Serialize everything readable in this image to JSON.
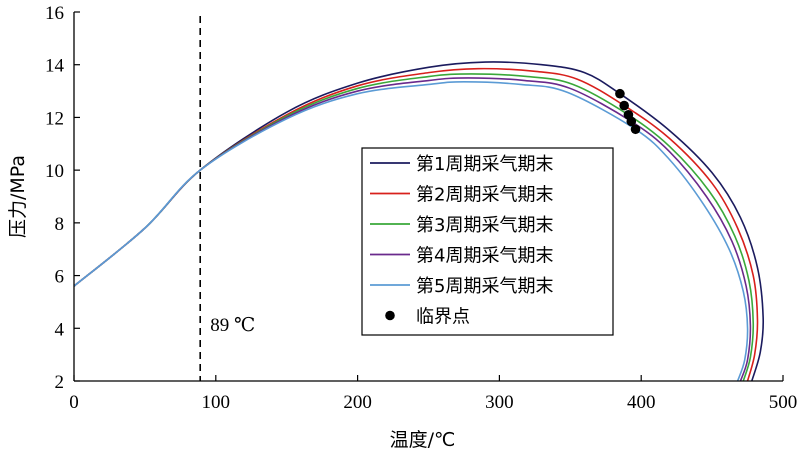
{
  "chart_data": {
    "type": "line",
    "xlabel": "温度/℃",
    "ylabel": "压力/MPa",
    "xlim": [
      0,
      500
    ],
    "ylim": [
      2,
      16
    ],
    "xticks": [
      0,
      100,
      200,
      300,
      400,
      500
    ],
    "yticks": [
      2,
      4,
      6,
      8,
      10,
      12,
      14,
      16
    ],
    "grid": false,
    "legend_position": "center-right",
    "vline": {
      "x": 89,
      "label": "89 ℃",
      "style": "dashed"
    },
    "series": [
      {
        "name": "第1周期采气期末",
        "color": "#1b1b5e",
        "points": [
          [
            0,
            5.6
          ],
          [
            50,
            7.8
          ],
          [
            89,
            10.0
          ],
          [
            150,
            12.2
          ],
          [
            200,
            13.3
          ],
          [
            250,
            13.9
          ],
          [
            290,
            14.1
          ],
          [
            330,
            14.0
          ],
          [
            360,
            13.7
          ],
          [
            385,
            12.9
          ],
          [
            420,
            11.5
          ],
          [
            450,
            9.9
          ],
          [
            470,
            8.2
          ],
          [
            482,
            6.3
          ],
          [
            486,
            4.4
          ],
          [
            484,
            3.1
          ],
          [
            478,
            2.0
          ]
        ]
      },
      {
        "name": "第2周期采气期末",
        "color": "#d8201c",
        "points": [
          [
            0,
            5.6
          ],
          [
            50,
            7.8
          ],
          [
            89,
            10.0
          ],
          [
            150,
            12.1
          ],
          [
            200,
            13.2
          ],
          [
            250,
            13.7
          ],
          [
            285,
            13.85
          ],
          [
            325,
            13.75
          ],
          [
            355,
            13.45
          ],
          [
            388,
            12.45
          ],
          [
            420,
            11.2
          ],
          [
            450,
            9.5
          ],
          [
            468,
            7.8
          ],
          [
            479,
            6.0
          ],
          [
            482,
            4.3
          ],
          [
            480,
            3.0
          ],
          [
            475,
            2.0
          ]
        ]
      },
      {
        "name": "第3周期采气期末",
        "color": "#3aa83a",
        "points": [
          [
            0,
            5.6
          ],
          [
            50,
            7.8
          ],
          [
            89,
            10.0
          ],
          [
            150,
            12.05
          ],
          [
            200,
            13.1
          ],
          [
            250,
            13.55
          ],
          [
            280,
            13.65
          ],
          [
            320,
            13.55
          ],
          [
            352,
            13.25
          ],
          [
            391,
            12.1
          ],
          [
            420,
            10.9
          ],
          [
            448,
            9.2
          ],
          [
            466,
            7.5
          ],
          [
            476,
            5.8
          ],
          [
            479,
            4.2
          ],
          [
            477,
            2.9
          ],
          [
            472,
            2.0
          ]
        ]
      },
      {
        "name": "第4周期采气期末",
        "color": "#6a2a8c",
        "points": [
          [
            0,
            5.6
          ],
          [
            50,
            7.8
          ],
          [
            89,
            10.0
          ],
          [
            150,
            12.0
          ],
          [
            200,
            13.0
          ],
          [
            250,
            13.4
          ],
          [
            278,
            13.5
          ],
          [
            318,
            13.4
          ],
          [
            350,
            13.1
          ],
          [
            393,
            11.85
          ],
          [
            420,
            10.7
          ],
          [
            446,
            9.0
          ],
          [
            464,
            7.3
          ],
          [
            474,
            5.6
          ],
          [
            477,
            4.1
          ],
          [
            475,
            2.8
          ],
          [
            470,
            2.0
          ]
        ]
      },
      {
        "name": "第5周期采气期末",
        "color": "#5b9bd5",
        "points": [
          [
            0,
            5.6
          ],
          [
            50,
            7.8
          ],
          [
            89,
            10.0
          ],
          [
            150,
            11.95
          ],
          [
            200,
            12.9
          ],
          [
            250,
            13.25
          ],
          [
            275,
            13.35
          ],
          [
            315,
            13.25
          ],
          [
            348,
            12.95
          ],
          [
            396,
            11.55
          ],
          [
            420,
            10.4
          ],
          [
            444,
            8.7
          ],
          [
            462,
            7.0
          ],
          [
            472,
            5.4
          ],
          [
            475,
            4.0
          ],
          [
            473,
            2.8
          ],
          [
            468,
            2.0
          ]
        ]
      }
    ],
    "critical_points": {
      "name": "临界点",
      "color": "#000000",
      "points": [
        [
          385,
          12.9
        ],
        [
          388,
          12.45
        ],
        [
          391,
          12.1
        ],
        [
          393,
          11.85
        ],
        [
          396,
          11.55
        ]
      ]
    }
  }
}
